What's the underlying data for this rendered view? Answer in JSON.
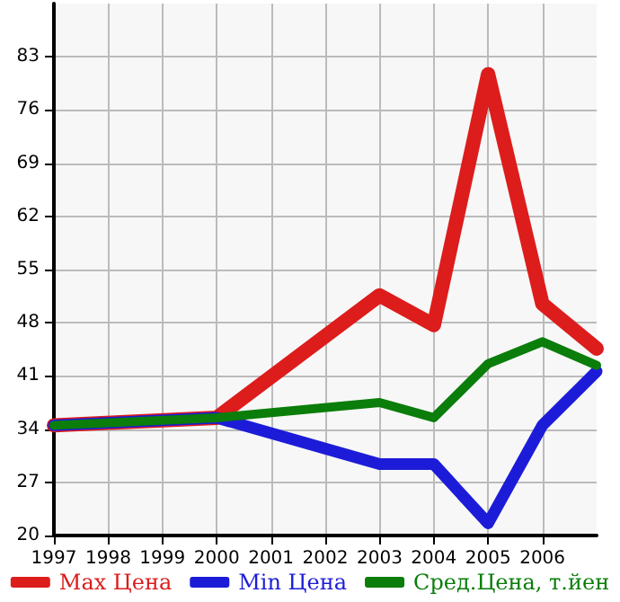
{
  "chart_data": {
    "type": "line",
    "x": [
      1997,
      2000,
      2003,
      2004,
      2005,
      2006,
      2007
    ],
    "xlim": [
      1997,
      2007
    ],
    "xticks": [
      1997,
      1998,
      1999,
      2000,
      2001,
      2002,
      2003,
      2004,
      2005,
      2006
    ],
    "ylim": [
      20,
      90
    ],
    "yticks": [
      20,
      27,
      34,
      41,
      48,
      55,
      62,
      69,
      76,
      83
    ],
    "grid": true,
    "legend": "bottom",
    "marker": "none",
    "line_style": "solid",
    "series": [
      {
        "name": "Max Цена",
        "color": "#dd1c1c",
        "values": [
          34.5,
          35.5,
          51.6,
          47.7,
          80.7,
          50.5,
          44.6
        ]
      },
      {
        "name": "Min Цена",
        "color": "#1c1cd8",
        "values": [
          34.5,
          35.5,
          29.4,
          29.4,
          21.6,
          34.5,
          41.6
        ]
      },
      {
        "name": "Сред.Цена, т.йен",
        "color": "#0a7d0a",
        "values": [
          34.5,
          35.5,
          37.5,
          35.5,
          42.6,
          45.5,
          42.4
        ]
      }
    ]
  }
}
